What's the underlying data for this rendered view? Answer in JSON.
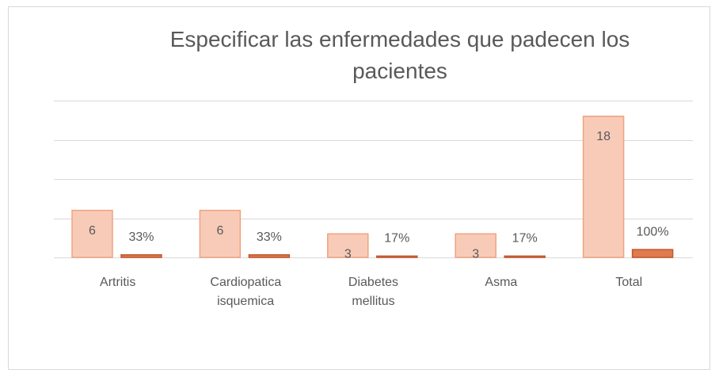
{
  "chart_data": {
    "type": "bar",
    "title": "Especificar las enfermedades que padecen los pacientes",
    "categories": [
      "Artritis",
      "Cardiopatica isquemica",
      "Diabetes mellitus",
      "Asma",
      "Total"
    ],
    "series": [
      {
        "color": "#f8cbb8",
        "values": [
          6,
          6,
          3,
          3,
          18
        ]
      },
      {
        "color": "#e07b4f",
        "values": [
          0.33,
          0.33,
          0.17,
          0.17,
          1
        ],
        "value_labels": [
          "33%",
          "33%",
          "17%",
          "17%",
          "100%"
        ]
      }
    ],
    "ylim": [
      0,
      20
    ],
    "yticks": [
      0,
      5,
      10,
      15,
      20
    ],
    "grid": true
  }
}
